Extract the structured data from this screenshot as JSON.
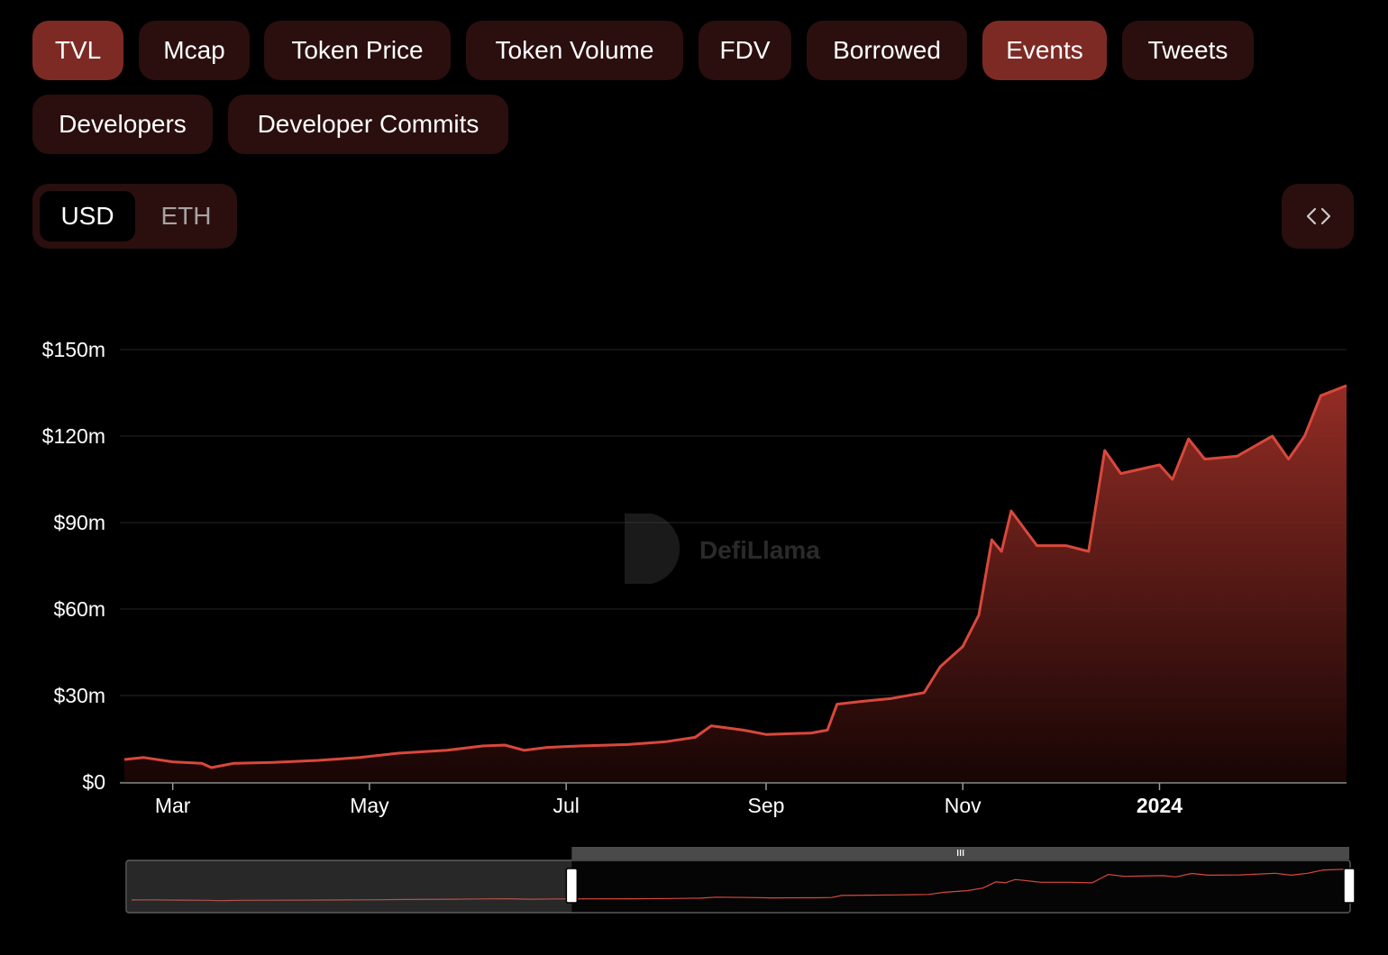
{
  "tabs": [
    {
      "label": "TVL",
      "active": true
    },
    {
      "label": "Mcap",
      "active": false
    },
    {
      "label": "Token Price",
      "active": false
    },
    {
      "label": "Token Volume",
      "active": false
    },
    {
      "label": "FDV",
      "active": false
    },
    {
      "label": "Borrowed",
      "active": false
    },
    {
      "label": "Events",
      "active": true
    },
    {
      "label": "Tweets",
      "active": false
    },
    {
      "label": "Developers",
      "active": false
    },
    {
      "label": "Developer Commits",
      "active": false
    }
  ],
  "currency_toggle": {
    "options": [
      "USD",
      "ETH"
    ],
    "selected": "USD"
  },
  "embed_icon": "code-brackets-icon",
  "watermark": {
    "text": "DefiLlama",
    "icon": "llama-logo"
  },
  "colors": {
    "accent": "#d9483c",
    "active_pill": "#7d2a25",
    "pill": "#2a0f0e",
    "background": "#000000"
  },
  "chart_data": {
    "type": "area",
    "title": "",
    "xlabel": "",
    "ylabel": "",
    "ylim": [
      0,
      150000000
    ],
    "y_ticks": [
      "$0",
      "$30m",
      "$60m",
      "$90m",
      "$120m",
      "$150m"
    ],
    "x_ticks": [
      "Mar",
      "May",
      "Jul",
      "Sep",
      "Nov",
      "2024"
    ],
    "grid": true,
    "series": [
      {
        "values": [
          [
            "2023-02-14",
            7.8
          ],
          [
            "2023-02-20",
            8.5
          ],
          [
            "2023-03-01",
            7.0
          ],
          [
            "2023-03-10",
            6.5
          ],
          [
            "2023-03-13",
            5.0
          ],
          [
            "2023-03-20",
            6.5
          ],
          [
            "2023-04-01",
            6.8
          ],
          [
            "2023-04-15",
            7.5
          ],
          [
            "2023-04-28",
            8.5
          ],
          [
            "2023-05-10",
            10.0
          ],
          [
            "2023-05-25",
            11.0
          ],
          [
            "2023-06-05",
            12.5
          ],
          [
            "2023-06-12",
            12.8
          ],
          [
            "2023-06-18",
            11.0
          ],
          [
            "2023-06-25",
            12.0
          ],
          [
            "2023-07-05",
            12.5
          ],
          [
            "2023-07-20",
            13.0
          ],
          [
            "2023-08-01",
            14.0
          ],
          [
            "2023-08-10",
            15.5
          ],
          [
            "2023-08-15",
            19.5
          ],
          [
            "2023-08-25",
            18.0
          ],
          [
            "2023-09-01",
            16.5
          ],
          [
            "2023-09-15",
            17.0
          ],
          [
            "2023-09-20",
            18.0
          ],
          [
            "2023-09-23",
            27.0
          ],
          [
            "2023-10-01",
            28.0
          ],
          [
            "2023-10-10",
            29.0
          ],
          [
            "2023-10-20",
            31.0
          ],
          [
            "2023-10-25",
            40.0
          ],
          [
            "2023-11-01",
            47.0
          ],
          [
            "2023-11-06",
            58.0
          ],
          [
            "2023-11-10",
            84.0
          ],
          [
            "2023-11-13",
            80.0
          ],
          [
            "2023-11-16",
            94.0
          ],
          [
            "2023-11-20",
            88.0
          ],
          [
            "2023-11-24",
            82.0
          ],
          [
            "2023-12-03",
            82.0
          ],
          [
            "2023-12-10",
            80.0
          ],
          [
            "2023-12-15",
            115.0
          ],
          [
            "2023-12-20",
            107.0
          ],
          [
            "2024-01-01",
            110.0
          ],
          [
            "2024-01-05",
            105.0
          ],
          [
            "2024-01-10",
            119.0
          ],
          [
            "2024-01-15",
            112.0
          ],
          [
            "2024-01-25",
            113.0
          ],
          [
            "2024-02-05",
            120.0
          ],
          [
            "2024-02-10",
            112.0
          ],
          [
            "2024-02-15",
            120.0
          ],
          [
            "2024-02-20",
            134.0
          ],
          [
            "2024-02-28",
            137.5
          ]
        ]
      }
    ],
    "range_selector": {
      "start": "2023-07-01",
      "end": "2024-02-28"
    }
  }
}
